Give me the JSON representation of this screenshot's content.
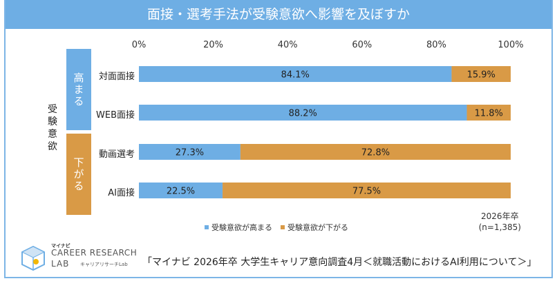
{
  "title": "面接・選考手法が受験意欲へ影響を及ぼすか",
  "y_axis_title": "受験意欲",
  "groups": {
    "high": "高まる",
    "low": "下がる"
  },
  "colors": {
    "increase": "#6eaee4",
    "decrease": "#d99a46",
    "title_bg": "#6eaee4"
  },
  "chart_data": {
    "type": "bar",
    "orientation": "horizontal",
    "stacked": true,
    "categories": [
      "対面面接",
      "WEB面接",
      "動画選考",
      "AI面接"
    ],
    "series": [
      {
        "name": "受験意欲が高まる",
        "values": [
          84.1,
          88.2,
          27.3,
          22.5
        ],
        "labels": [
          "84.1%",
          "88.2%",
          "27.3%",
          "22.5%"
        ]
      },
      {
        "name": "受験意欲が下がる",
        "values": [
          15.9,
          11.8,
          72.8,
          77.5
        ],
        "labels": [
          "15.9%",
          "11.8%",
          "72.8%",
          "77.5%"
        ]
      }
    ],
    "xlim": [
      0,
      100
    ],
    "x_ticks": [
      "0%",
      "20%",
      "40%",
      "60%",
      "80%",
      "100%"
    ],
    "legend_position": "bottom"
  },
  "legend": [
    {
      "label": "受験意欲が高まる",
      "color": "#6eaee4"
    },
    {
      "label": "受験意欲が下がる",
      "color": "#d99a46"
    }
  ],
  "note_line1": "2026年卒",
  "note_line2": "(n=1,385)",
  "logo": {
    "maker": "マイナビ",
    "main": "CAREER RESEARCH",
    "lab": "LAB",
    "sub": "キャリアリサーチLab"
  },
  "source": "「マイナビ 2026年卒 大学生キャリア意向調査4月＜就職活動におけるAI利用について＞」"
}
